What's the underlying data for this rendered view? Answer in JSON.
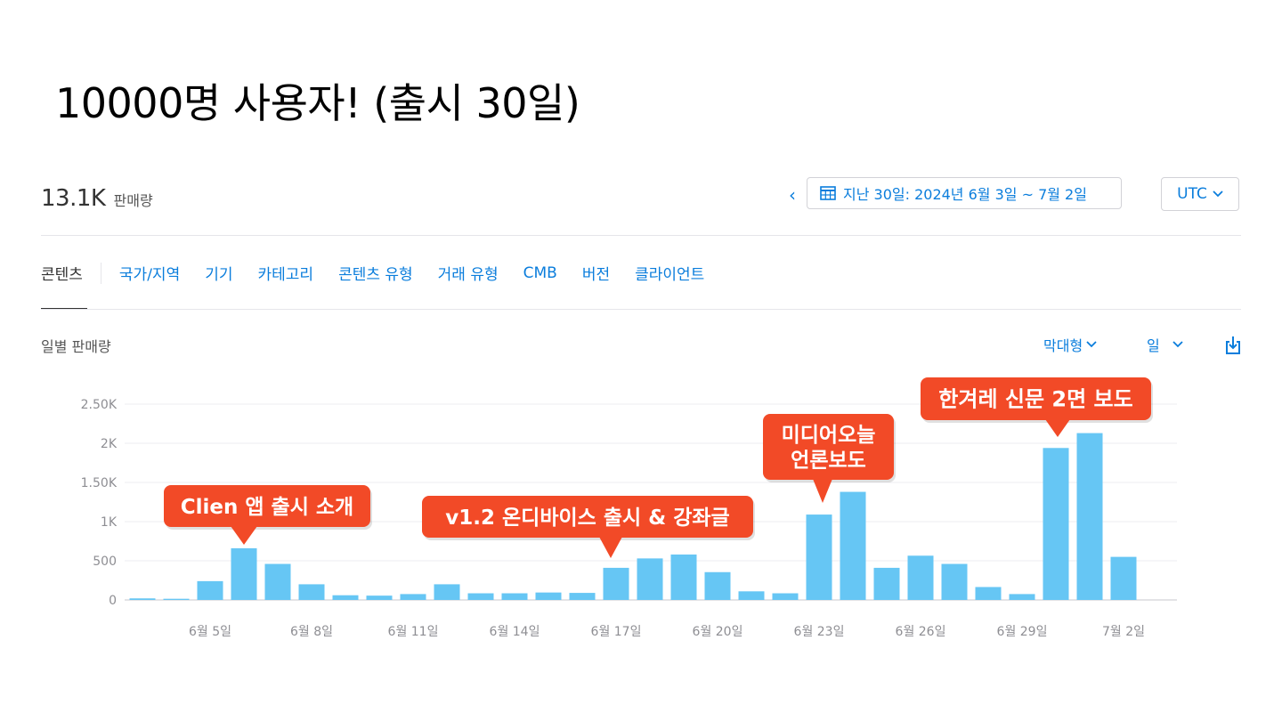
{
  "slide_title": "10000명 사용자! (출시 30일)",
  "summary": {
    "value": "13.1K",
    "unit": "판매량"
  },
  "date_range": {
    "label": "지난 30일: 2024년 6월 3일 ~ 7월 2일"
  },
  "timezone": {
    "label": "UTC"
  },
  "tabs": [
    {
      "label": "콘텐츠",
      "active": true
    },
    {
      "label": "국가/지역"
    },
    {
      "label": "기기"
    },
    {
      "label": "카테고리"
    },
    {
      "label": "콘텐츠 유형"
    },
    {
      "label": "거래 유형"
    },
    {
      "label": "CMB"
    },
    {
      "label": "버전"
    },
    {
      "label": "클라이언트"
    }
  ],
  "chart_header": {
    "label": "일별 판매량",
    "chart_type_label": "막대형",
    "interval_label": "일"
  },
  "chart_data": {
    "type": "bar",
    "categories": [
      "6월 3일",
      "6월 4일",
      "6월 5일",
      "6월 6일",
      "6월 7일",
      "6월 8일",
      "6월 9일",
      "6월 10일",
      "6월 11일",
      "6월 12일",
      "6월 13일",
      "6월 14일",
      "6월 15일",
      "6월 16일",
      "6월 17일",
      "6월 18일",
      "6월 19일",
      "6월 20일",
      "6월 21일",
      "6월 22일",
      "6월 23일",
      "6월 24일",
      "6월 25일",
      "6월 26일",
      "6월 27일",
      "6월 28일",
      "6월 29일",
      "6월 30일",
      "7월 1일",
      "7월 2일"
    ],
    "values": [
      20,
      15,
      240,
      660,
      460,
      200,
      60,
      55,
      75,
      200,
      85,
      85,
      95,
      90,
      410,
      530,
      580,
      355,
      110,
      85,
      1090,
      1380,
      410,
      565,
      460,
      165,
      75,
      1940,
      2130,
      550
    ],
    "x_tick_labels": [
      "6월 5일",
      "6월 8일",
      "6월 11일",
      "6월 14일",
      "6월 17일",
      "6월 20일",
      "6월 23일",
      "6월 26일",
      "6월 29일",
      "7월 2일"
    ],
    "x_tick_indices": [
      2,
      5,
      8,
      11,
      14,
      17,
      20,
      23,
      26,
      29
    ],
    "y_ticks": [
      0,
      500,
      1000,
      1500,
      2000,
      2500
    ],
    "y_tick_labels": [
      "0",
      "500",
      "1K",
      "1.50K",
      "2K",
      "2.50K"
    ],
    "ylim": [
      0,
      2500
    ],
    "grid": true,
    "bar_color": "#66c6f4",
    "annotations": [
      {
        "lines": [
          "Clien 앱 출시 소개"
        ],
        "index": 3
      },
      {
        "lines": [
          "v1.2 온디바이스 출시 & 강좌글"
        ],
        "index": 14
      },
      {
        "lines": [
          "미디어오늘",
          "언론보도"
        ],
        "index": 20
      },
      {
        "lines": [
          "한겨레 신문 2면 보도"
        ],
        "index": 27
      }
    ],
    "annotation_color": "#f24a27"
  }
}
